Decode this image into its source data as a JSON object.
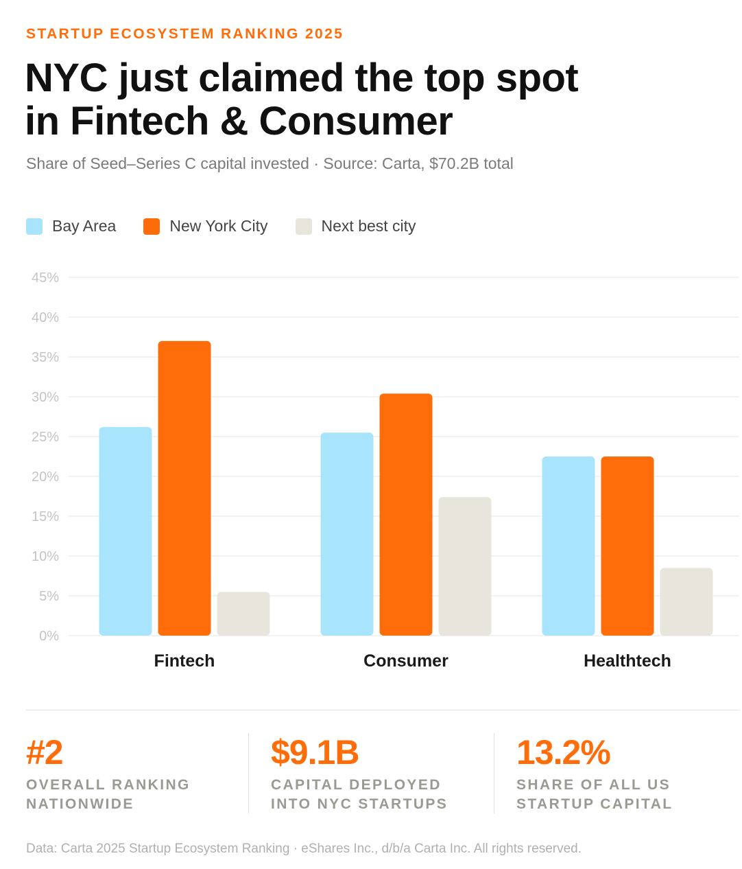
{
  "header": {
    "eyebrow": "STARTUP ECOSYSTEM RANKING 2025",
    "title_line1": "NYC just claimed the top spot",
    "title_line2": "in Fintech & Consumer",
    "subtitle": "Share of Seed–Series C capital invested · Source: Carta, $70.2B total"
  },
  "colors": {
    "bay_area": "#a8e4fb",
    "nyc": "#ff6d0b",
    "next_best": "#e8e6dc",
    "accent": "#ff6d0b"
  },
  "chart_data": {
    "type": "bar",
    "title": "NYC just claimed the top spot in Fintech & Consumer",
    "categories": [
      "Fintech",
      "Consumer",
      "Healthtech"
    ],
    "series": [
      {
        "name": "Bay Area",
        "values": [
          26.2,
          25.5,
          22.5
        ]
      },
      {
        "name": "New York City",
        "values": [
          37.0,
          30.4,
          22.5
        ]
      },
      {
        "name": "Next best city",
        "values": [
          5.5,
          17.4,
          8.5
        ]
      }
    ],
    "ylim": [
      0,
      45
    ],
    "yticks": [
      "0%",
      "5%",
      "10%",
      "15%",
      "20%",
      "25%",
      "30%",
      "35%",
      "40%",
      "45%"
    ],
    "grid": true,
    "legend": "top-left"
  },
  "stats": [
    {
      "value": "#2",
      "label_line1": "OVERALL RANKING",
      "label_line2": "NATIONWIDE"
    },
    {
      "value": "$9.1B",
      "label_line1": "CAPITAL DEPLOYED",
      "label_line2": "INTO NYC STARTUPS"
    },
    {
      "value": "13.2%",
      "label_line1": "SHARE OF ALL US",
      "label_line2": "STARTUP CAPITAL"
    }
  ],
  "footer": "Data: Carta 2025 Startup Ecosystem Ranking · eShares Inc., d/b/a Carta Inc. All rights reserved."
}
